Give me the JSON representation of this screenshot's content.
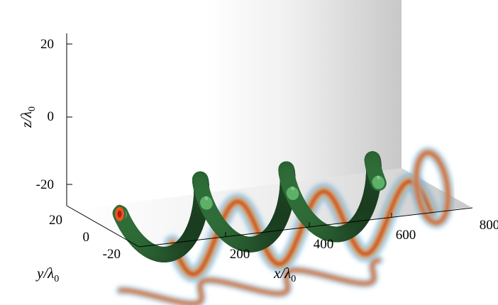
{
  "chart_data": {
    "type": "surface-3d",
    "title": "",
    "xlabel": "x/λ",
    "ylabel": "y/λ",
    "zlabel": "z/λ",
    "label_subscript": "0",
    "x_ticks": [
      "200",
      "400",
      "600",
      "800"
    ],
    "y_ticks": [
      "20",
      "0",
      "-20"
    ],
    "z_ticks": [
      "20",
      "0",
      "-20"
    ],
    "x_range": [
      0,
      800
    ],
    "y_range": [
      -25,
      25
    ],
    "z_range": [
      -25,
      25
    ],
    "helix": {
      "radius": 11,
      "turns": 3,
      "x_start": 80,
      "x_end": 700,
      "color": "#5aa864"
    },
    "projection_colormap": [
      "#ffffff",
      "#3aa0d8",
      "#f5e23a",
      "#e8561e",
      "#b31b12"
    ]
  }
}
